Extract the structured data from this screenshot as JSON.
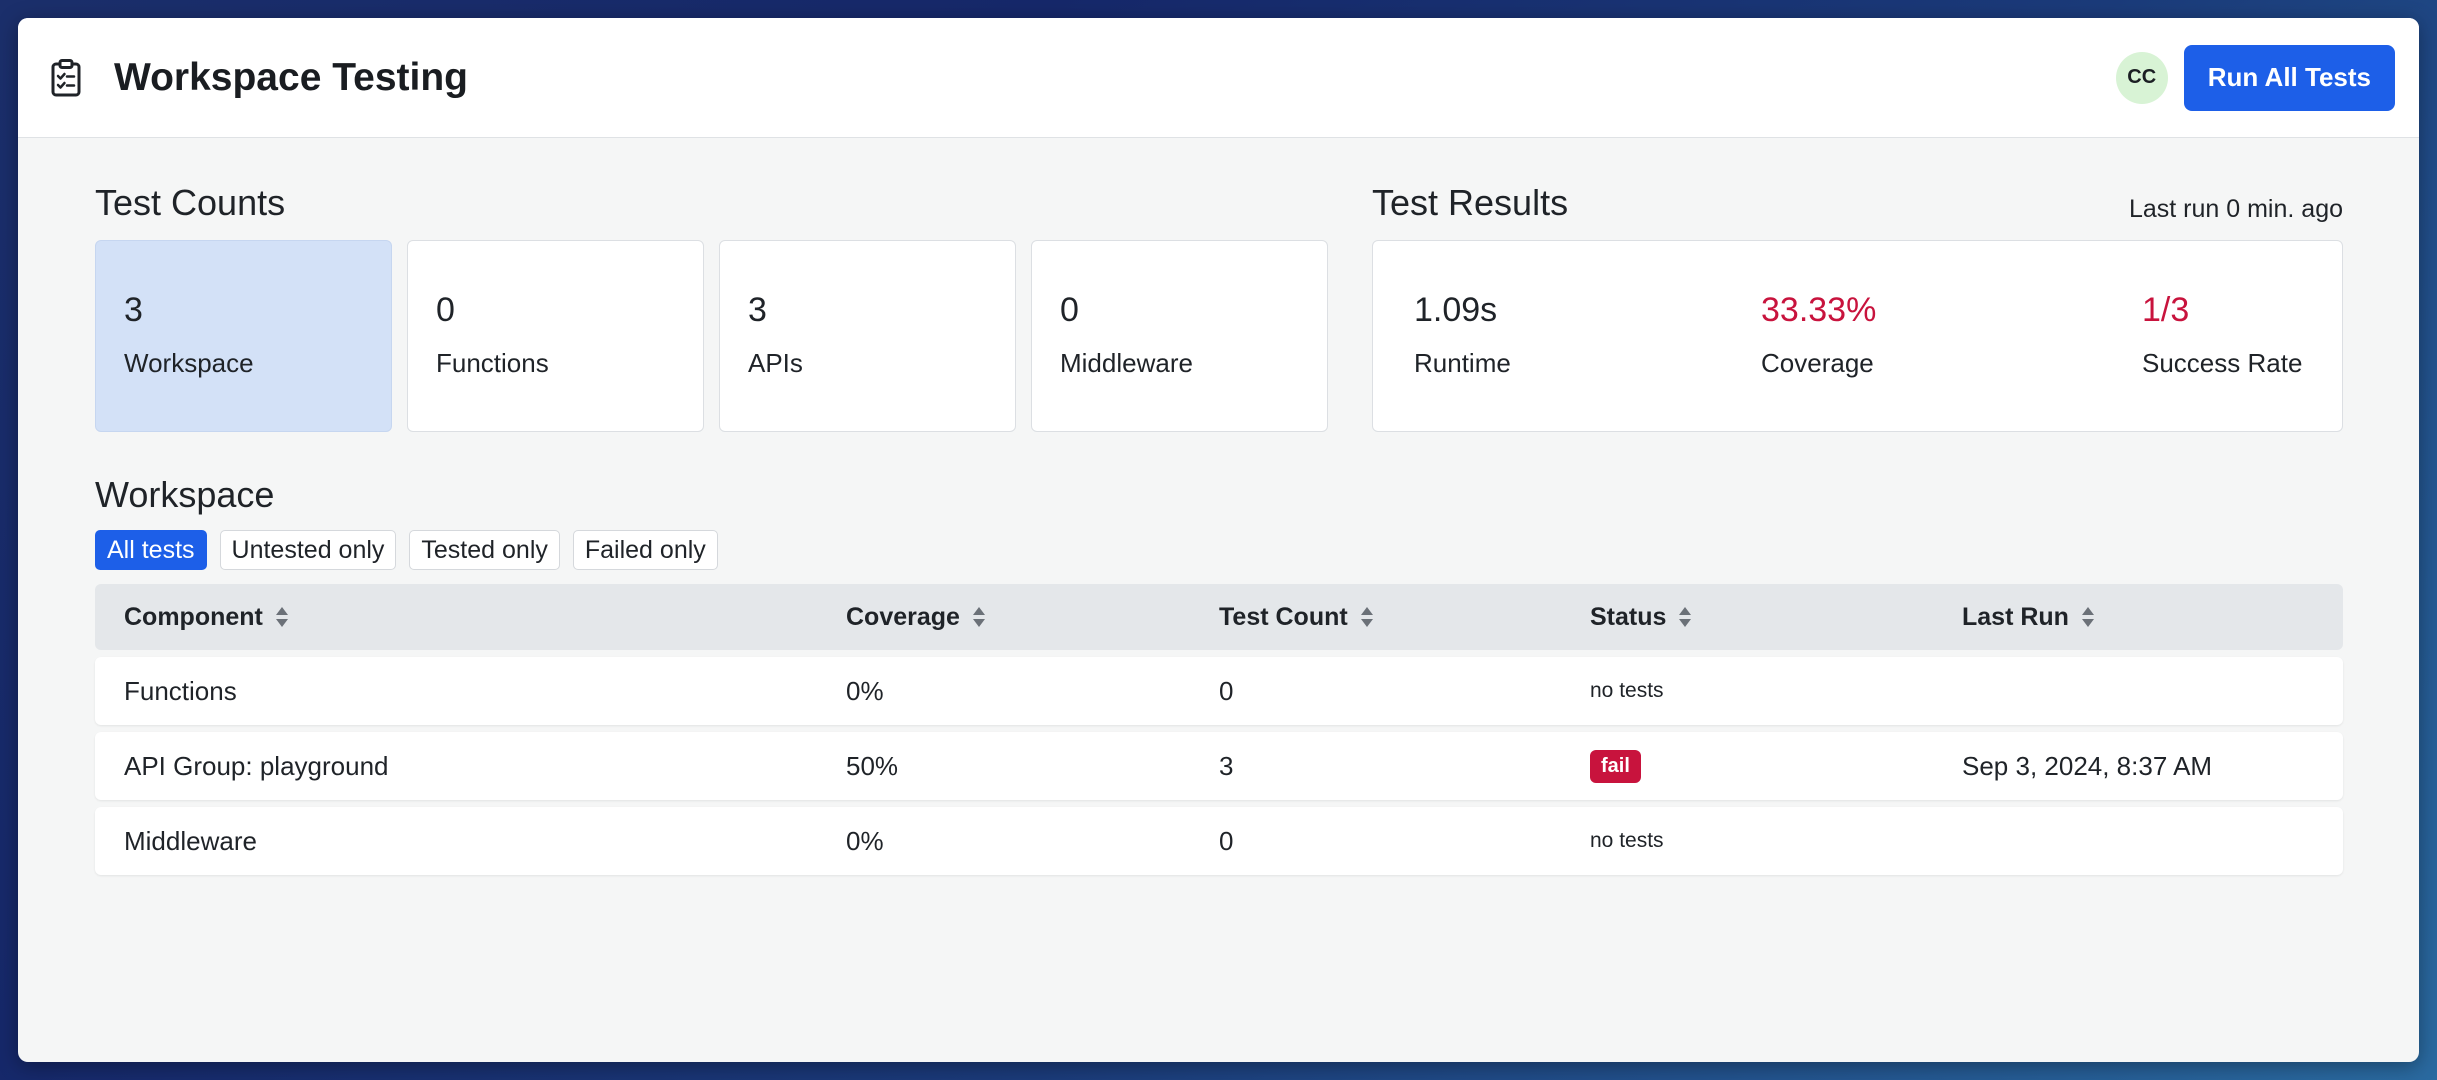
{
  "header": {
    "title": "Workspace Testing",
    "avatar_initials": "CC",
    "run_all_label": "Run All Tests"
  },
  "test_counts": {
    "heading": "Test Counts",
    "cards": [
      {
        "value": "3",
        "label": "Workspace"
      },
      {
        "value": "0",
        "label": "Functions"
      },
      {
        "value": "3",
        "label": "APIs"
      },
      {
        "value": "0",
        "label": "Middleware"
      }
    ]
  },
  "test_results": {
    "heading": "Test Results",
    "last_run": "Last run 0 min. ago",
    "metrics": [
      {
        "value": "1.09s",
        "label": "Runtime"
      },
      {
        "value": "33.33%",
        "label": "Coverage"
      },
      {
        "value": "1/3",
        "label": "Success Rate"
      }
    ]
  },
  "workspace": {
    "heading": "Workspace",
    "filters": [
      "All tests",
      "Untested only",
      "Tested only",
      "Failed only"
    ],
    "columns": [
      "Component",
      "Coverage",
      "Test Count",
      "Status",
      "Last Run"
    ],
    "rows": [
      {
        "component": "Functions",
        "coverage": "0%",
        "test_count": "0",
        "status": "no tests",
        "last_run": ""
      },
      {
        "component": "API Group: playground",
        "coverage": "50%",
        "test_count": "3",
        "status": "fail",
        "last_run": "Sep 3, 2024, 8:37 AM"
      },
      {
        "component": "Middleware",
        "coverage": "0%",
        "test_count": "0",
        "status": "no tests",
        "last_run": ""
      }
    ]
  },
  "colors": {
    "accent": "#1d5fe8",
    "danger": "#c8133d",
    "active_card": "#d3e1f7",
    "avatar_bg": "#d8f3d5"
  },
  "icons": {
    "app": "clipboard-checklist-icon",
    "sort": "sort-updown-icon"
  }
}
